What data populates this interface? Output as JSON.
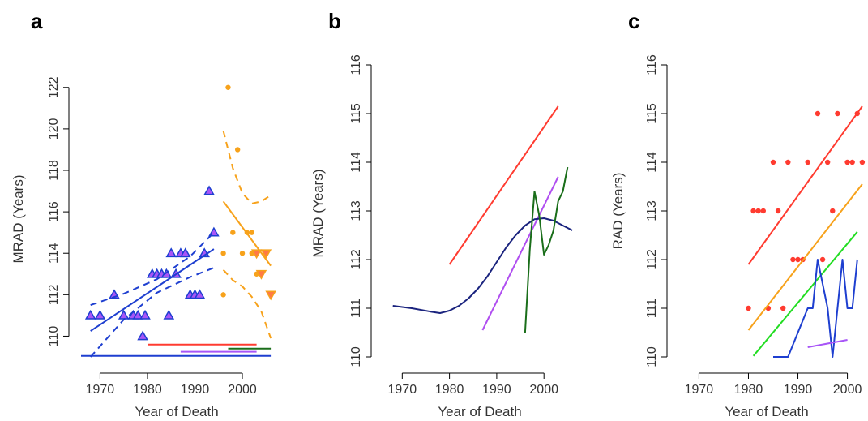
{
  "chart_data": [
    {
      "panel": "a",
      "type": "scatter",
      "xlabel": "Year of Death",
      "ylabel": "MRAD (Years)",
      "xticks": [
        1970,
        1980,
        1990,
        2000
      ],
      "yticks": [
        110,
        112,
        114,
        116,
        118,
        120,
        122
      ],
      "xlim": [
        1966,
        2007
      ],
      "ylim": [
        109,
        122.5
      ],
      "series": [
        {
          "kind": "points",
          "marker": "triangle-up",
          "fill": "#a855f7",
          "stroke": "#1e3fd0",
          "x": [
            1968,
            1970,
            1973,
            1975,
            1977,
            1978,
            1979,
            1979.5,
            1981,
            1982,
            1983,
            1984,
            1984.5,
            1985,
            1986,
            1987,
            1988,
            1989,
            1990,
            1991,
            1992,
            1993,
            1994
          ],
          "y": [
            111,
            111,
            112,
            111,
            111,
            111,
            110,
            111,
            113,
            113,
            113,
            113,
            111,
            114,
            113,
            114,
            114,
            112,
            112,
            112,
            114,
            117,
            115
          ]
        },
        {
          "kind": "points",
          "marker": "circle",
          "fill": "#f7a21b",
          "x": [
            1996,
            1996,
            1997,
            1998,
            1999,
            2000,
            2001,
            2002,
            2002,
            2003
          ],
          "y": [
            112,
            114,
            122,
            115,
            119,
            114,
            115,
            115,
            114,
            113
          ]
        },
        {
          "kind": "points",
          "marker": "triangle-down",
          "fill": "#ff7a45",
          "stroke": "#f7a21b",
          "x": [
            2003,
            2004,
            2005,
            2006
          ],
          "y": [
            114,
            113,
            114,
            112
          ]
        },
        {
          "kind": "line",
          "color": "#1e3fd0",
          "width": 2,
          "x": [
            1968,
            1994
          ],
          "y": [
            110.25,
            114.2
          ]
        },
        {
          "kind": "line",
          "color": "#1e3fd0",
          "width": 2,
          "dash": "8,6",
          "x": [
            1968,
            1975,
            1982,
            1989,
            1994
          ],
          "y": [
            111.5,
            112.05,
            112.75,
            113.85,
            115
          ]
        },
        {
          "kind": "line",
          "color": "#1e3fd0",
          "width": 2,
          "dash": "8,6",
          "x": [
            1968,
            1975,
            1982,
            1989,
            1994
          ],
          "y": [
            109,
            110.8,
            112.1,
            112.85,
            113.3
          ]
        },
        {
          "kind": "line",
          "color": "#f7a21b",
          "width": 2,
          "x": [
            1996,
            2006
          ],
          "y": [
            116.5,
            113.4
          ]
        },
        {
          "kind": "line",
          "color": "#f7a21b",
          "width": 2,
          "dash": "8,6",
          "x": [
            1996,
            1998,
            2000,
            2002,
            2004,
            2006
          ],
          "y": [
            119.9,
            118.1,
            116.9,
            116.4,
            116.5,
            116.8
          ]
        },
        {
          "kind": "line",
          "color": "#f7a21b",
          "width": 2,
          "dash": "8,6",
          "x": [
            1996,
            1998,
            2000,
            2002,
            2004,
            2006
          ],
          "y": [
            113.2,
            112.7,
            112.4,
            111.9,
            111.2,
            109.9
          ]
        },
        {
          "kind": "line",
          "color": "#ff3b30",
          "width": 2,
          "x": [
            1980,
            2003
          ],
          "y": [
            109.6,
            109.6
          ]
        },
        {
          "kind": "line",
          "color": "#1a6e1a",
          "width": 2,
          "x": [
            1997,
            2006
          ],
          "y": [
            109.4,
            109.4
          ]
        },
        {
          "kind": "line",
          "color": "#a855f7",
          "width": 2,
          "x": [
            1987,
            2003
          ],
          "y": [
            109.25,
            109.25
          ]
        },
        {
          "kind": "line",
          "color": "#1e3fd0",
          "width": 2,
          "x": [
            1966,
            2006
          ],
          "y": [
            109.05,
            109.05
          ]
        }
      ]
    },
    {
      "panel": "b",
      "type": "line",
      "xlabel": "Year of Death",
      "ylabel": "MRAD (Years)",
      "xticks": [
        1970,
        1980,
        1990,
        2000
      ],
      "yticks": [
        110,
        111,
        112,
        113,
        114,
        115,
        116
      ],
      "xlim": [
        1966,
        2007
      ],
      "ylim": [
        110,
        116
      ],
      "series": [
        {
          "kind": "line",
          "color": "#ff3b30",
          "width": 2,
          "x": [
            1980,
            2003
          ],
          "y": [
            111.9,
            115.15
          ]
        },
        {
          "kind": "line",
          "color": "#b04ef0",
          "width": 2,
          "x": [
            1987,
            2003
          ],
          "y": [
            110.55,
            113.7
          ]
        },
        {
          "kind": "line",
          "color": "#1a237e",
          "width": 2,
          "x": [
            1968,
            1972,
            1976,
            1978,
            1980,
            1982,
            1984,
            1986,
            1988,
            1990,
            1992,
            1994,
            1996,
            1998,
            2000,
            2002,
            2004,
            2006
          ],
          "y": [
            111.05,
            111.0,
            110.93,
            110.9,
            110.95,
            111.05,
            111.2,
            111.4,
            111.65,
            111.95,
            112.25,
            112.5,
            112.7,
            112.83,
            112.85,
            112.8,
            112.7,
            112.6
          ]
        },
        {
          "kind": "line",
          "color": "#1a6e1a",
          "width": 2,
          "x": [
            1996,
            1997,
            1998,
            1999,
            2000,
            2001,
            2002,
            2003,
            2004,
            2005
          ],
          "y": [
            110.5,
            112.2,
            113.4,
            112.9,
            112.1,
            112.3,
            112.6,
            113.2,
            113.4,
            113.9
          ]
        }
      ]
    },
    {
      "panel": "c",
      "type": "scatter",
      "xlabel": "Year of Death",
      "ylabel": "RAD (Years)",
      "xticks": [
        1970,
        1980,
        1990,
        2000
      ],
      "yticks": [
        110,
        111,
        112,
        113,
        114,
        115,
        116
      ],
      "xlim": [
        1966,
        2004
      ],
      "ylim": [
        110,
        116
      ],
      "series": [
        {
          "kind": "points",
          "marker": "circle",
          "fill": "#ff3b30",
          "x": [
            1980,
            1981,
            1982,
            1983,
            1984,
            1985,
            1986,
            1987,
            1988,
            1989,
            1990,
            1991,
            1992,
            1994,
            1995,
            1996,
            1997,
            1998,
            2000,
            2001,
            2002,
            2003
          ],
          "y": [
            111,
            113,
            113,
            113,
            111,
            114,
            113,
            111,
            114,
            112,
            112,
            112,
            114,
            115,
            112,
            114,
            113,
            115,
            114,
            114,
            115,
            114
          ]
        },
        {
          "kind": "line",
          "color": "#ff3b30",
          "width": 2,
          "x": [
            1980,
            2003
          ],
          "y": [
            111.9,
            115.15
          ]
        },
        {
          "kind": "line",
          "color": "#f7a21b",
          "width": 2,
          "x": [
            1980,
            2003
          ],
          "y": [
            110.55,
            113.55
          ]
        },
        {
          "kind": "line",
          "color": "#22dd22",
          "width": 2,
          "x": [
            1981,
            2002
          ],
          "y": [
            110.02,
            112.57
          ]
        },
        {
          "kind": "line",
          "color": "#1e3fd0",
          "width": 2,
          "x": [
            1985,
            1988,
            1992,
            1993,
            1994,
            1996,
            1997,
            1999,
            2000,
            2001,
            2002
          ],
          "y": [
            110,
            110,
            111,
            111,
            112,
            111,
            110,
            112,
            111,
            111,
            112
          ]
        },
        {
          "kind": "line",
          "color": "#a855f7",
          "width": 2,
          "x": [
            1992,
            2000
          ],
          "y": [
            110.2,
            110.35
          ]
        }
      ]
    }
  ]
}
